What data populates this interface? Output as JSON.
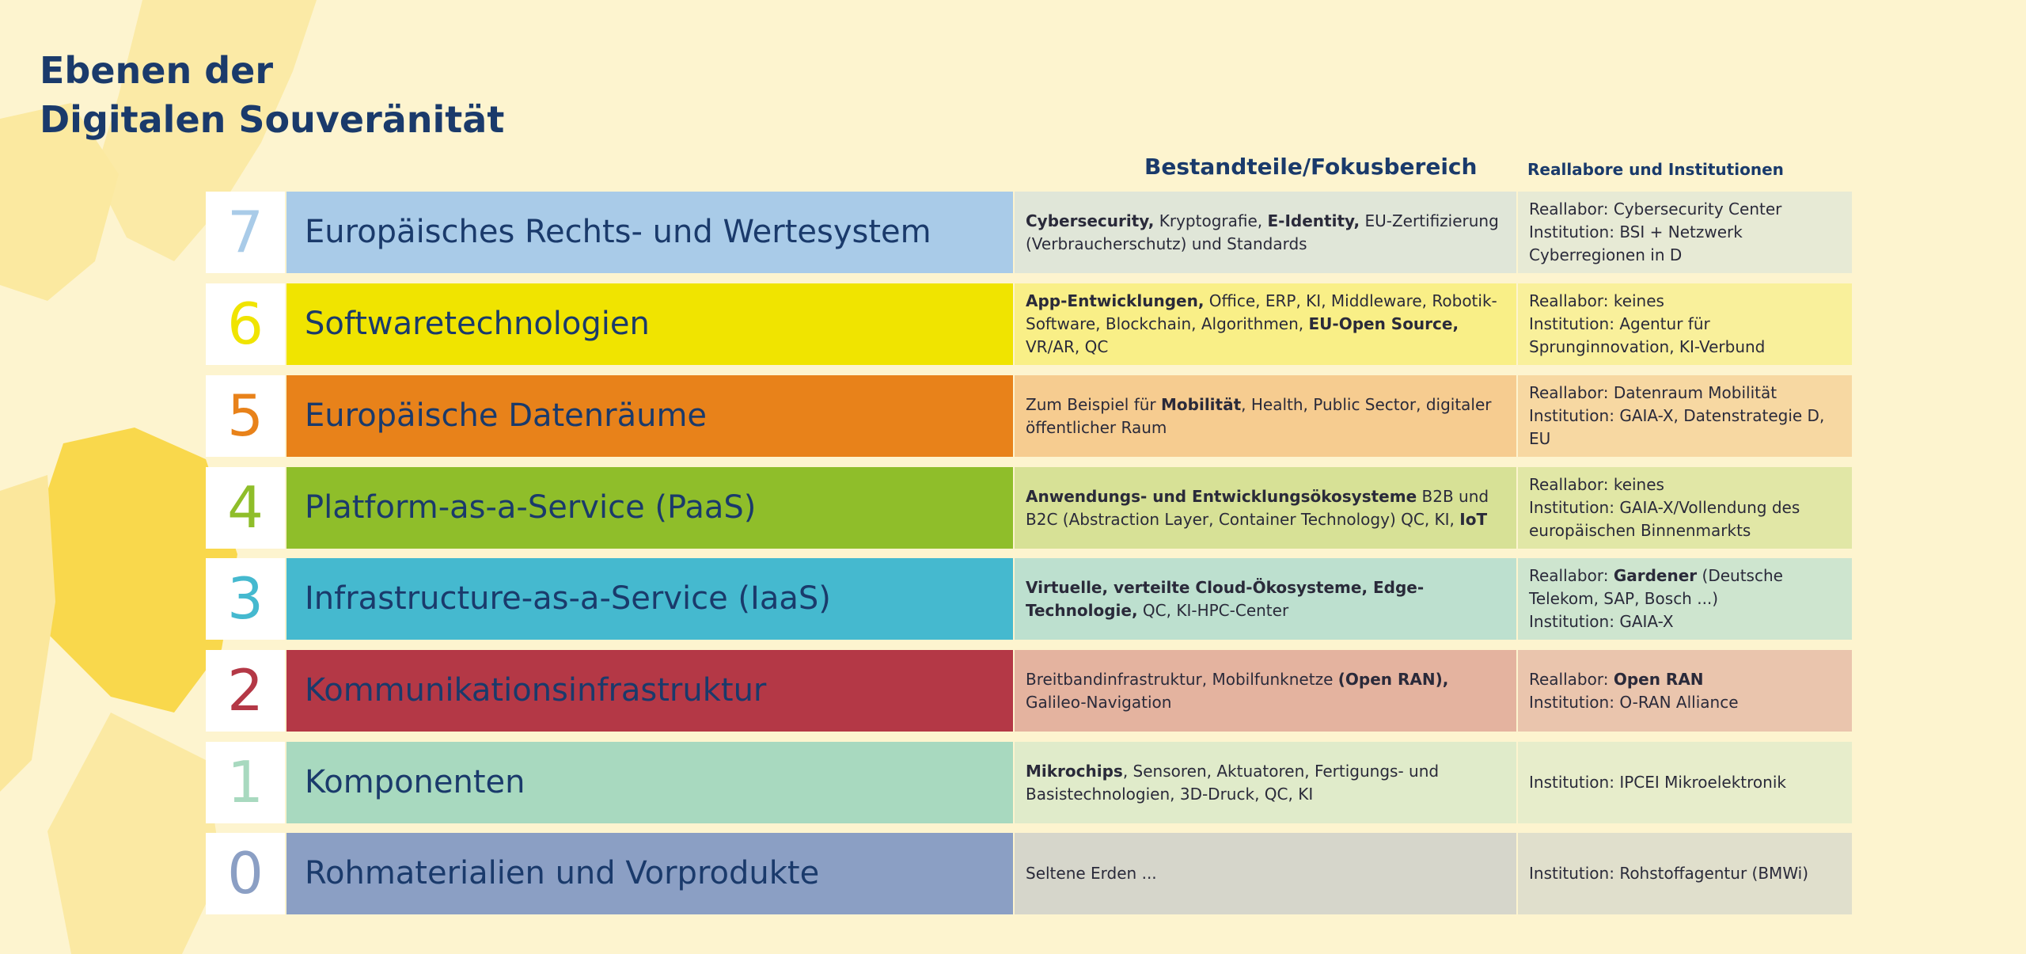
{
  "title": [
    "Ebenen der",
    "Digitalen Souveränität"
  ],
  "headers": {
    "focus": "Bestandteile/Fokusbereich",
    "institutions": "Reallabore und Institutionen"
  },
  "rows": [
    {
      "number": 7,
      "label": "Europäisches Rechts- und Wertesystem",
      "color": "#a9cbe8",
      "focus": [
        {
          "text": "Cybersecurity,",
          "bold": true
        },
        {
          "text": " Kryptografie, "
        },
        {
          "text": "E-Identity,",
          "bold": true
        },
        {
          "text": " EU-Zertifizierung (Verbraucherschutz) und Standards"
        }
      ],
      "institutions": [
        [
          {
            "text": "Reallabor: Cybersecurity Center"
          }
        ],
        [
          {
            "text": "Institution: BSI + Netzwerk Cyberregionen in D"
          }
        ]
      ]
    },
    {
      "number": 6,
      "label": "Softwaretechnologien",
      "color": "#f0e400",
      "focus": [
        {
          "text": "App-Entwicklungen,",
          "bold": true
        },
        {
          "text": " Office, ERP, KI, Middleware, Robotik-Software, Blockchain, Algorithmen, "
        },
        {
          "text": "EU-Open Source,",
          "bold": true
        },
        {
          "text": " VR/AR, QC"
        }
      ],
      "institutions": [
        [
          {
            "text": "Reallabor: keines"
          }
        ],
        [
          {
            "text": "Institution: Agentur für Sprunginnovation, KI-Verbund"
          }
        ]
      ]
    },
    {
      "number": 5,
      "label": "Europäische Datenräume",
      "color": "#e8821a",
      "focus": [
        {
          "text": "Zum Beispiel für "
        },
        {
          "text": "Mobilität",
          "bold": true
        },
        {
          "text": ", Health, Public Sector, digitaler öffentlicher Raum"
        }
      ],
      "institutions": [
        [
          {
            "text": "Reallabor: Datenraum Mobilität"
          }
        ],
        [
          {
            "text": "Institution: GAIA-X, Datenstrategie D, EU"
          }
        ]
      ]
    },
    {
      "number": 4,
      "label": "Platform-as-a-Service (PaaS)",
      "color": "#8fbe2a",
      "focus": [
        {
          "text": "Anwendungs- und Entwicklungsökosysteme",
          "bold": true
        },
        {
          "text": " B2B und B2C (Abstraction Layer, Container Technology) QC, KI, "
        },
        {
          "text": "IoT",
          "bold": true
        }
      ],
      "institutions": [
        [
          {
            "text": "Reallabor: keines"
          }
        ],
        [
          {
            "text": "Institution: GAIA-X/Vollendung des europäischen Binnenmarkts"
          }
        ]
      ]
    },
    {
      "number": 3,
      "label": "Infrastructure-as-a-Service (IaaS)",
      "color": "#45b9cf",
      "focus": [
        {
          "text": "Virtuelle, verteilte Cloud-Ökosysteme, Edge-Technologie,",
          "bold": true
        },
        {
          "text": " QC, KI-HPC-Center"
        }
      ],
      "institutions": [
        [
          {
            "text": "Reallabor: "
          },
          {
            "text": "Gardener",
            "bold": true
          },
          {
            "text": " (Deutsche Telekom, SAP, Bosch ...)"
          }
        ],
        [
          {
            "text": "Institution: GAIA-X"
          }
        ]
      ]
    },
    {
      "number": 2,
      "label": "Kommunikationsinfrastruktur",
      "color": "#b43846",
      "focus": [
        {
          "text": "Breitbandinfrastruktur, Mobilfunknetze "
        },
        {
          "text": "(Open RAN),",
          "bold": true
        },
        {
          "text": " Galileo-Navigation"
        }
      ],
      "institutions": [
        [
          {
            "text": "Reallabor: "
          },
          {
            "text": "Open RAN",
            "bold": true
          }
        ],
        [
          {
            "text": "Institution: O-RAN Alliance"
          }
        ]
      ]
    },
    {
      "number": 1,
      "label": "Komponenten",
      "color": "#a8d9bf",
      "focus": [
        {
          "text": "Mikrochips",
          "bold": true
        },
        {
          "text": ", Sensoren, Aktuatoren, Fertigungs- und Basistechnologien, 3D-Druck, QC, KI"
        }
      ],
      "institutions": [
        [
          {
            "text": "Institution: IPCEI Mikroelektronik"
          }
        ]
      ]
    },
    {
      "number": 0,
      "label": "Rohmaterialien und Vorprodukte",
      "color": "#8b9fc4",
      "focus": [
        {
          "text": "Seltene Erden ..."
        }
      ],
      "institutions": [
        [
          {
            "text": "Institution: Rohstoffagentur (BMWi)"
          }
        ]
      ]
    }
  ]
}
